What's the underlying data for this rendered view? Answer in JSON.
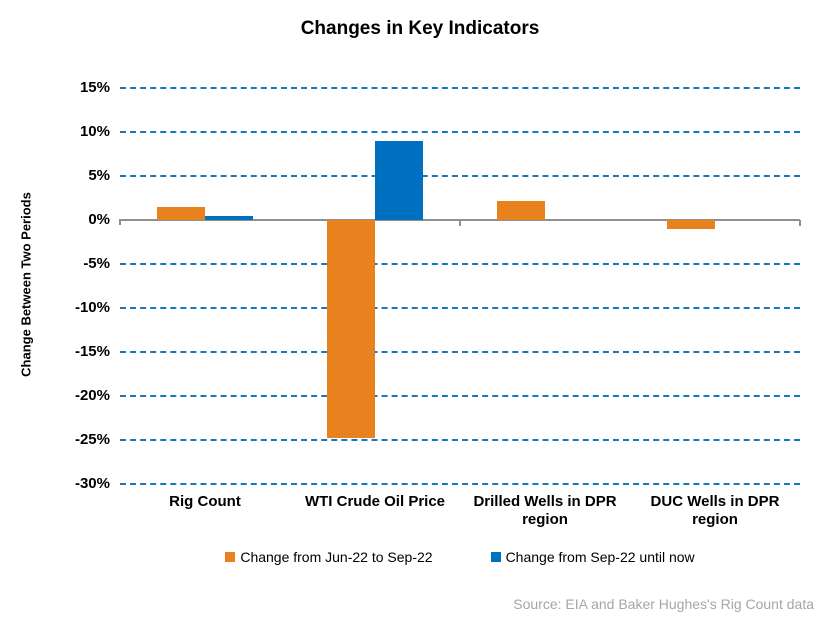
{
  "title": "Changes in Key Indicators",
  "chart_data": {
    "type": "bar",
    "categories": [
      "Rig Count",
      "WTI Crude Oil Price",
      "Drilled Wells in DPR region",
      "DUC Wells in DPR region"
    ],
    "series": [
      {
        "name": "Change from Jun-22 to Sep-22",
        "color": "#E8821E",
        "values": [
          1.5,
          -24.8,
          2.2,
          -1.0
        ]
      },
      {
        "name": "Change from Sep-22 until now",
        "color": "#0070C0",
        "values": [
          0.5,
          9.0,
          0,
          0
        ]
      }
    ],
    "title": "Changes in Key Indicators",
    "xlabel": "",
    "ylabel": "Change Between Two Periods",
    "ylim": [
      -30,
      15
    ],
    "ytick_step": 5,
    "ytick_suffix": "%",
    "grid": "horizontal-dashed",
    "legend_position": "bottom"
  },
  "source_note": "Source: EIA and Baker Hughes's Rig Count data",
  "colors": {
    "gridline": "#1878BE",
    "axis": "#909090",
    "source_text": "#A6A6A6",
    "text": "#000000",
    "background": "#FFFFFF"
  }
}
